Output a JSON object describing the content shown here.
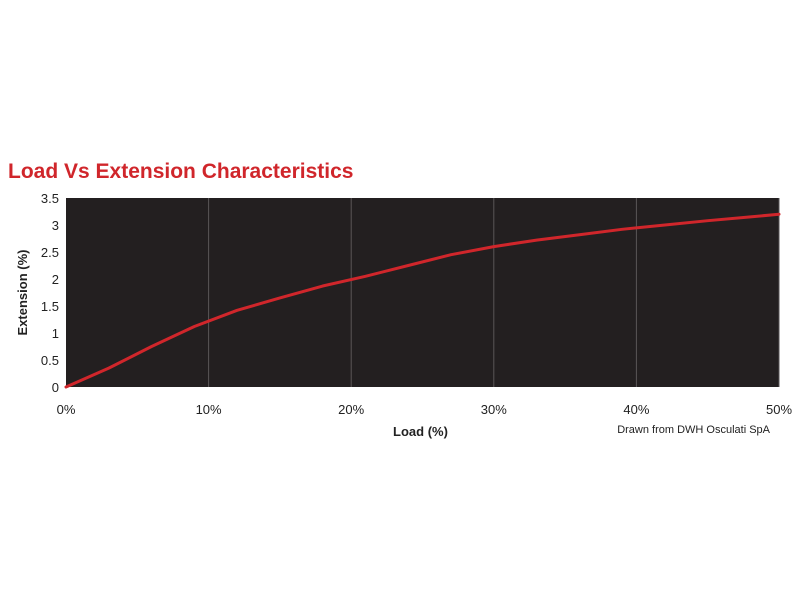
{
  "colors": {
    "title": "#d0262b",
    "plot_background": "#231f20",
    "grid": "#5a5657",
    "series": "#d0262b",
    "text": "#222222"
  },
  "chart_data": {
    "type": "line",
    "title": "Load Vs Extension Characteristics",
    "xlabel": "Load (%)",
    "ylabel": "Extension (%)",
    "xlim": [
      0,
      50
    ],
    "ylim": [
      0,
      3.5
    ],
    "x_ticks": [
      0,
      10,
      20,
      30,
      40,
      50
    ],
    "x_tick_labels": [
      "0%",
      "10%",
      "20%",
      "30%",
      "40%",
      "50%"
    ],
    "y_ticks": [
      0,
      0.5,
      1,
      1.5,
      2,
      2.5,
      3,
      3.5
    ],
    "y_tick_labels": [
      "0",
      "0.5",
      "1",
      "1.5",
      "2",
      "2.5",
      "3",
      "3.5"
    ],
    "grid": true,
    "series": [
      {
        "x": [
          0,
          3,
          6,
          9,
          12,
          15,
          18,
          21,
          24,
          27,
          30,
          33,
          36,
          39,
          42,
          45,
          48,
          50
        ],
        "y": [
          0,
          0.35,
          0.75,
          1.12,
          1.42,
          1.65,
          1.87,
          2.05,
          2.25,
          2.45,
          2.6,
          2.72,
          2.82,
          2.92,
          3.0,
          3.08,
          3.15,
          3.2
        ]
      }
    ],
    "source_note": "Drawn from DWH Osculati SpA"
  }
}
